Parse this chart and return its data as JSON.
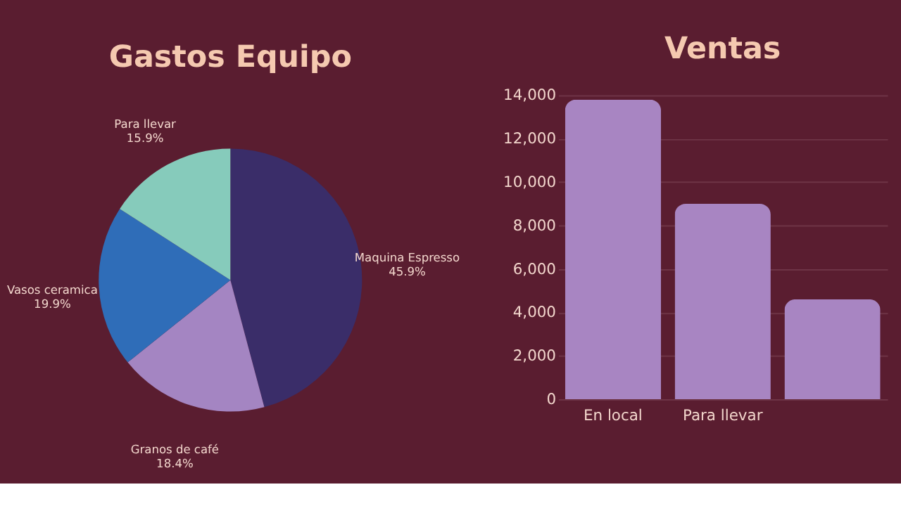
{
  "chart_data": [
    {
      "type": "pie",
      "title": "Gastos Equipo",
      "categories": [
        "Maquina Espresso",
        "Granos de café",
        "Vasos ceramica",
        "Para llevar"
      ],
      "values": [
        45.9,
        18.4,
        19.9,
        15.9
      ],
      "value_labels": [
        "45.9%",
        "18.4%",
        "19.9%",
        "15.9%"
      ],
      "colors": [
        "#3a2d69",
        "#a485c2",
        "#2f6db8",
        "#86cbbb"
      ]
    },
    {
      "type": "bar",
      "title": "Ventas",
      "categories": [
        "En local",
        "Para llevar",
        null
      ],
      "values": [
        13800,
        9000,
        4600
      ],
      "color": "#a885c2",
      "ylim": [
        0,
        14000
      ],
      "yticks": [
        {
          "value": 0,
          "label": "0"
        },
        {
          "value": 2000,
          "label": "2,000"
        },
        {
          "value": 4000,
          "label": "4,000"
        },
        {
          "value": 6000,
          "label": "6,000"
        },
        {
          "value": 8000,
          "label": "8,000"
        },
        {
          "value": 10000,
          "label": "10,000"
        },
        {
          "value": 12000,
          "label": "12,000"
        },
        {
          "value": 14000,
          "label": "14,000"
        }
      ],
      "grid": "y"
    }
  ]
}
